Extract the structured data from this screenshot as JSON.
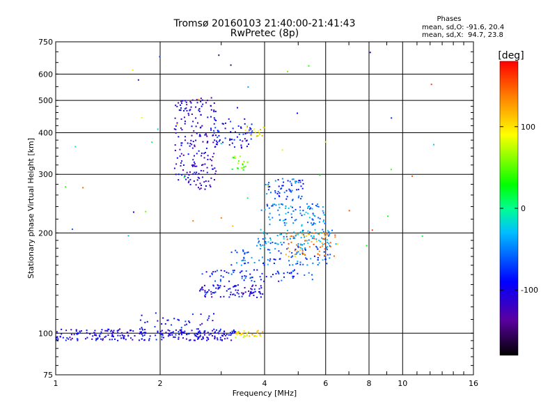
{
  "chart_data": {
    "type": "scatter",
    "title": "Tromsø 20160103 21:40:00-21:41:43",
    "subtitle": "RwPretec (8p)",
    "xlabel": "Frequency [MHz]",
    "ylabel": "Stationary phase Virtual Height [km]",
    "x_scale": "log",
    "y_scale": "log",
    "xlim": [
      1,
      16
    ],
    "ylim": [
      75,
      750
    ],
    "x_ticks": [
      "1",
      "2",
      "4",
      "6",
      "8",
      "10",
      "16"
    ],
    "x_tick_values": [
      1,
      2,
      4,
      6,
      8,
      10,
      16
    ],
    "y_ticks": [
      "75",
      "100",
      "200",
      "300",
      "400",
      "500",
      "600",
      "750"
    ],
    "y_tick_values": [
      75,
      100,
      200,
      300,
      400,
      500,
      600,
      750
    ],
    "grid": true,
    "colorbar": {
      "unit": "[deg]",
      "range": [
        -180,
        180
      ],
      "tick_labels": [
        "100",
        "0",
        "-100"
      ],
      "tick_values": [
        100,
        0,
        -100
      ],
      "colors": [
        "#000000",
        "#5a00a0",
        "#0000ff",
        "#00c0ff",
        "#00ff90",
        "#00ff00",
        "#ffff00",
        "#ff8000",
        "#ff0000"
      ]
    },
    "stats": {
      "title": "Phases",
      "lines": [
        "mean, sd,O: -91.6, 20.4",
        "mean, sd,X:  94.7, 23.8"
      ]
    },
    "clusters": [
      {
        "label": "E-trace blue",
        "x": [
          1.0,
          3.3
        ],
        "y": [
          95,
          103
        ],
        "n": 260,
        "phase": -100
      },
      {
        "label": "E-trace yellow",
        "x": [
          3.3,
          4.0
        ],
        "y": [
          97,
          102
        ],
        "n": 30,
        "phase": 100
      },
      {
        "label": "Es blobs",
        "x": [
          1.7,
          2.9
        ],
        "y": [
          100,
          115
        ],
        "n": 40,
        "phase": -95
      },
      {
        "label": "F1 low rising trace",
        "x": [
          2.6,
          4.0
        ],
        "y": [
          128,
          140
        ],
        "n": 90,
        "phase": -100
      },
      {
        "label": "F1 band 150",
        "x": [
          2.6,
          5.5
        ],
        "y": [
          143,
          155
        ],
        "n": 70,
        "phase": -80
      },
      {
        "label": "F band 165-175",
        "x": [
          3.2,
          6.2
        ],
        "y": [
          160,
          180
        ],
        "n": 90,
        "phase": -60
      },
      {
        "label": "F band 185-200",
        "x": [
          3.8,
          6.5
        ],
        "y": [
          180,
          205
        ],
        "n": 100,
        "phase": -40
      },
      {
        "label": "F band orange 180",
        "x": [
          4.6,
          6.5
        ],
        "y": [
          170,
          200
        ],
        "n": 60,
        "phase": 130
      },
      {
        "label": "F band 215-240",
        "x": [
          4.0,
          6.0
        ],
        "y": [
          210,
          245
        ],
        "n": 90,
        "phase": -50
      },
      {
        "label": "F band 250-290",
        "x": [
          4.0,
          5.2
        ],
        "y": [
          250,
          292
        ],
        "n": 60,
        "phase": -70
      },
      {
        "label": "F2 O-trace",
        "x": [
          2.2,
          2.9
        ],
        "y": [
          270,
          510
        ],
        "n": 200,
        "phase": -110
      },
      {
        "label": "F2 upper",
        "x": [
          2.8,
          3.7
        ],
        "y": [
          360,
          440
        ],
        "n": 70,
        "phase": -95
      },
      {
        "label": "F2 green",
        "x": [
          3.2,
          3.6
        ],
        "y": [
          305,
          340
        ],
        "n": 20,
        "phase": 50
      },
      {
        "label": "F2 yellow",
        "x": [
          3.5,
          4.0
        ],
        "y": [
          390,
          420
        ],
        "n": 15,
        "phase": 105
      },
      {
        "label": "scattered noise",
        "x": [
          1.0,
          13.0
        ],
        "y": [
          180,
          700
        ],
        "n": 45,
        "phase": 0
      }
    ]
  }
}
